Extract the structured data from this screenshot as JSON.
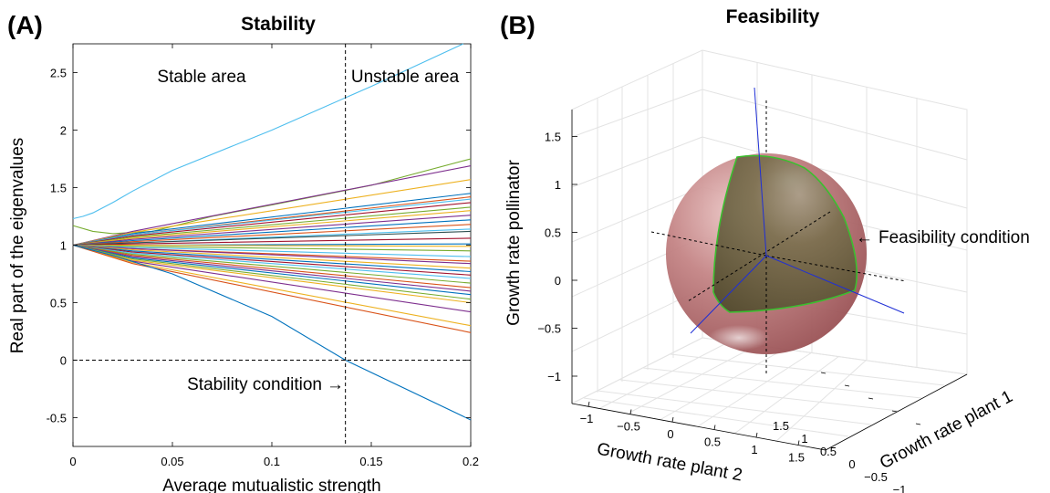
{
  "chart_data": [
    {
      "panel_label": "(A)",
      "type": "line",
      "title": "Stability",
      "xlabel": "Average mutualistic strength",
      "ylabel": "Real part of the eigenvalues",
      "xlim": [
        0,
        0.2
      ],
      "ylim": [
        -0.75,
        2.75
      ],
      "xticks": [
        0,
        0.05,
        0.1,
        0.15,
        0.2
      ],
      "xtick_labels": [
        "0",
        "0.05",
        "0.1",
        "0.15",
        "0.2"
      ],
      "yticks": [
        -0.5,
        0,
        0.5,
        1,
        1.5,
        2,
        2.5
      ],
      "ytick_labels": [
        "-0.5",
        "0",
        "0.5",
        "1",
        "1.5",
        "2",
        "2.5"
      ],
      "grid": false,
      "vline_x": 0.137,
      "hline_y": 0,
      "annotations": {
        "stable_area": "Stable area",
        "unstable_area": "Unstable area",
        "stability_condition": "Stability condition",
        "arrow": "→"
      },
      "series_colors": [
        "#0072BD",
        "#D95319",
        "#EDB120",
        "#7E2F8E",
        "#77AC30",
        "#4DBEEE",
        "#A2142F"
      ],
      "series": [
        {
          "color": "#4DBEEE",
          "x": [
            0,
            0.005,
            0.01,
            0.02,
            0.03,
            0.05,
            0.1,
            0.15,
            0.2
          ],
          "y": [
            1.23,
            1.25,
            1.28,
            1.37,
            1.47,
            1.65,
            2.0,
            2.38,
            2.78
          ]
        },
        {
          "color": "#77AC30",
          "x": [
            0,
            0.01,
            0.02,
            0.04,
            0.07,
            0.1,
            0.15,
            0.2
          ],
          "y": [
            1.17,
            1.12,
            1.1,
            1.12,
            1.25,
            1.35,
            1.52,
            1.75
          ]
        },
        {
          "color": "#7E2F8E",
          "x": [
            0,
            0.03,
            0.2
          ],
          "y": [
            1.0,
            1.12,
            1.69
          ]
        },
        {
          "color": "#EDB120",
          "x": [
            0,
            0.03,
            0.2
          ],
          "y": [
            1.0,
            1.11,
            1.57
          ]
        },
        {
          "color": "#0072BD",
          "x": [
            0,
            0.03,
            0.2
          ],
          "y": [
            1.0,
            1.1,
            1.45
          ]
        },
        {
          "color": "#D95319",
          "x": [
            0,
            0.03,
            0.2
          ],
          "y": [
            1.0,
            1.09,
            1.42
          ]
        },
        {
          "color": "#4DBEEE",
          "x": [
            0,
            0.03,
            0.2
          ],
          "y": [
            1.0,
            1.09,
            1.4
          ]
        },
        {
          "color": "#A2142F",
          "x": [
            0,
            0.03,
            0.2
          ],
          "y": [
            1.0,
            1.08,
            1.37
          ]
        },
        {
          "color": "#77AC30",
          "x": [
            0,
            0.03,
            0.2
          ],
          "y": [
            1.0,
            1.07,
            1.33
          ]
        },
        {
          "color": "#EDB120",
          "x": [
            0,
            0.03,
            0.2
          ],
          "y": [
            1.0,
            1.06,
            1.3
          ]
        },
        {
          "color": "#7E2F8E",
          "x": [
            0,
            0.03,
            0.2
          ],
          "y": [
            1.0,
            1.05,
            1.26
          ]
        },
        {
          "color": "#0072BD",
          "x": [
            0,
            0.03,
            0.2
          ],
          "y": [
            1.0,
            1.04,
            1.22
          ]
        },
        {
          "color": "#D95319",
          "x": [
            0,
            0.03,
            0.2
          ],
          "y": [
            1.0,
            1.03,
            1.18
          ]
        },
        {
          "color": "#4DBEEE",
          "x": [
            0,
            0.03,
            0.2
          ],
          "y": [
            1.0,
            1.02,
            1.14
          ]
        },
        {
          "color": "#2F4F4F",
          "x": [
            0,
            0.03,
            0.2
          ],
          "y": [
            1.0,
            1.02,
            1.12
          ]
        },
        {
          "color": "#A2142F",
          "x": [
            0,
            0.03,
            0.2
          ],
          "y": [
            1.0,
            1.01,
            1.06
          ]
        },
        {
          "color": "#0072BD",
          "x": [
            0,
            0.03,
            0.2
          ],
          "y": [
            1.0,
            1.0,
            1.01
          ]
        },
        {
          "color": "#EDB120",
          "x": [
            0,
            0.03,
            0.2
          ],
          "y": [
            1.0,
            1.0,
            0.99
          ]
        },
        {
          "color": "#77AC30",
          "x": [
            0,
            0.03,
            0.2
          ],
          "y": [
            1.0,
            0.99,
            0.95
          ]
        },
        {
          "color": "#4DBEEE",
          "x": [
            0,
            0.03,
            0.2
          ],
          "y": [
            1.0,
            0.98,
            0.9
          ]
        },
        {
          "color": "#D95319",
          "x": [
            0,
            0.03,
            0.2
          ],
          "y": [
            1.0,
            0.97,
            0.86
          ]
        },
        {
          "color": "#7E2F8E",
          "x": [
            0,
            0.03,
            0.2
          ],
          "y": [
            1.0,
            0.97,
            0.84
          ]
        },
        {
          "color": "#EDB120",
          "x": [
            0,
            0.03,
            0.2
          ],
          "y": [
            1.0,
            0.96,
            0.8
          ]
        },
        {
          "color": "#0072BD",
          "x": [
            0,
            0.03,
            0.2
          ],
          "y": [
            1.0,
            0.95,
            0.77
          ]
        },
        {
          "color": "#A2142F",
          "x": [
            0,
            0.03,
            0.2
          ],
          "y": [
            1.0,
            0.94,
            0.74
          ]
        },
        {
          "color": "#4DBEEE",
          "x": [
            0,
            0.03,
            0.2
          ],
          "y": [
            1.0,
            0.93,
            0.71
          ]
        },
        {
          "color": "#77AC30",
          "x": [
            0,
            0.03,
            0.2
          ],
          "y": [
            1.0,
            0.92,
            0.67
          ]
        },
        {
          "color": "#D95319",
          "x": [
            0,
            0.03,
            0.2
          ],
          "y": [
            1.0,
            0.91,
            0.63
          ]
        },
        {
          "color": "#7E2F8E",
          "x": [
            0,
            0.03,
            0.2
          ],
          "y": [
            1.0,
            0.9,
            0.6
          ]
        },
        {
          "color": "#0072BD",
          "x": [
            0,
            0.03,
            0.2
          ],
          "y": [
            1.0,
            0.89,
            0.57
          ]
        },
        {
          "color": "#77AC30",
          "x": [
            0,
            0.03,
            0.2
          ],
          "y": [
            1.0,
            0.88,
            0.53
          ]
        },
        {
          "color": "#EDB120",
          "x": [
            0,
            0.03,
            0.2
          ],
          "y": [
            1.0,
            0.87,
            0.5
          ]
        },
        {
          "color": "#7E2F8E",
          "x": [
            0,
            0.03,
            0.2
          ],
          "y": [
            1.0,
            0.86,
            0.42
          ]
        },
        {
          "color": "#EDB120",
          "x": [
            0,
            0.03,
            0.2
          ],
          "y": [
            1.0,
            0.85,
            0.3
          ]
        },
        {
          "color": "#D95319",
          "x": [
            0,
            0.03,
            0.2
          ],
          "y": [
            1.0,
            0.84,
            0.24
          ]
        },
        {
          "color": "#0072BD",
          "x": [
            0,
            0.02,
            0.05,
            0.1,
            0.137,
            0.2
          ],
          "y": [
            1.0,
            0.91,
            0.75,
            0.38,
            0.0,
            -0.52
          ]
        }
      ]
    },
    {
      "panel_label": "(B)",
      "type": "surface3d",
      "title": "Feasibility",
      "zlabel": "Growth rate pollinator",
      "xlabel": "Growth rate plant 2",
      "ylabel": "Growth rate plant 1",
      "zticks": [
        -1,
        -0.5,
        0,
        0.5,
        1,
        1.5
      ],
      "ztick_labels": [
        "−1",
        "−0.5",
        "0",
        "0.5",
        "1",
        "1.5"
      ],
      "xticks": [
        -1,
        -0.5,
        0,
        0.5,
        1,
        1.5
      ],
      "xtick_labels": [
        "−1",
        "−0.5",
        "0",
        "0.5",
        "1",
        "1.5"
      ],
      "yticks": [
        -1,
        -0.5,
        0,
        0.5,
        1,
        1.5
      ],
      "ytick_labels": [
        "−1",
        "−0.5",
        "0",
        "0.5",
        "1",
        "1.5"
      ],
      "sphere_radius": 1,
      "grid": true,
      "annotation": "Feasibility condition",
      "colors": {
        "sphere": "#B5676B",
        "feasible_region": "#5B5737",
        "boundary": "#3BBF2F",
        "axes_lines": "#1F2FD6"
      }
    }
  ]
}
